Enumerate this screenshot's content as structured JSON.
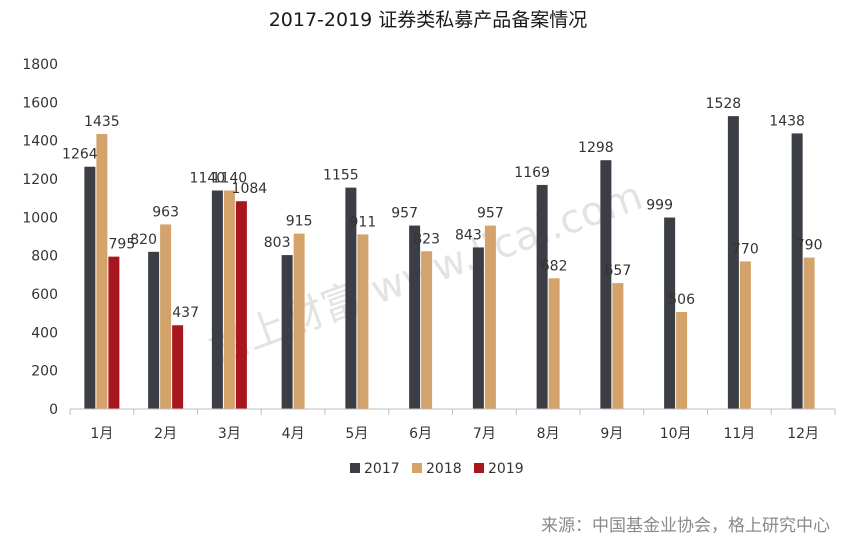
{
  "chart_data": {
    "type": "bar",
    "title": "2017-2019 证券类私募产品备案情况",
    "categories": [
      "1月",
      "2月",
      "3月",
      "4月",
      "5月",
      "6月",
      "7月",
      "8月",
      "9月",
      "10月",
      "11月",
      "12月"
    ],
    "series": [
      {
        "name": "2017",
        "color": "#3b3e45",
        "values": [
          1264,
          820,
          1140,
          803,
          1155,
          957,
          843,
          1169,
          1298,
          999,
          1528,
          1438
        ]
      },
      {
        "name": "2018",
        "color": "#d4a36b",
        "values": [
          1435,
          963,
          1140,
          915,
          911,
          823,
          957,
          682,
          657,
          506,
          770,
          790
        ]
      },
      {
        "name": "2019",
        "color": "#a8161f",
        "values": [
          795,
          437,
          1084,
          null,
          null,
          null,
          null,
          null,
          null,
          null,
          null,
          null
        ]
      }
    ],
    "ylim": [
      0,
      1800
    ],
    "yticks": [
      "0",
      "200",
      "400",
      "600",
      "800",
      "1000",
      "1200",
      "1400",
      "1600",
      "1800"
    ],
    "legend_position": "bottom",
    "grid": false,
    "source": "来源：中国基金业协会，格上研究中心",
    "watermark": "格上财富 www.licai.com"
  }
}
